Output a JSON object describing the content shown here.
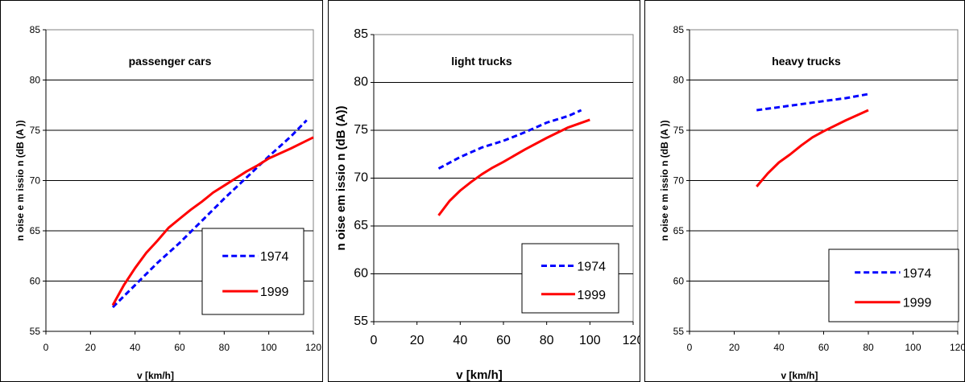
{
  "chart_data": [
    {
      "type": "line",
      "title": "passenger cars",
      "xlabel": "v [km/h]",
      "ylabel": "n oise  e m issio n  (dB (A ))",
      "xlim": [
        0,
        120
      ],
      "ylim": [
        55,
        85
      ],
      "x_ticks": [
        "0",
        "20",
        "40",
        "60",
        "80",
        "100",
        "120"
      ],
      "y_ticks": [
        "55",
        "60",
        "65",
        "70",
        "75",
        "80",
        "85"
      ],
      "grid": "horizontal",
      "legend_position": "bottom-right",
      "series": [
        {
          "name": "1974",
          "color": "#0000ff",
          "style": "dashed",
          "x": [
            30,
            40,
            50,
            60,
            70,
            80,
            90,
            100,
            110,
            117
          ],
          "y": [
            57.4,
            59.6,
            61.8,
            63.8,
            66.0,
            68.2,
            70.3,
            72.4,
            74.4,
            76.0
          ]
        },
        {
          "name": "1999",
          "color": "#ff0000",
          "style": "solid",
          "x": [
            30,
            35,
            40,
            45,
            50,
            55,
            60,
            65,
            70,
            75,
            80,
            85,
            90,
            95,
            100,
            110,
            120
          ],
          "y": [
            57.6,
            59.6,
            61.3,
            62.8,
            64.0,
            65.3,
            66.2,
            67.1,
            67.9,
            68.8,
            69.5,
            70.2,
            70.9,
            71.5,
            72.2,
            73.2,
            74.3
          ]
        }
      ]
    },
    {
      "type": "line",
      "title": "light trucks",
      "xlabel": "v [km/h]",
      "ylabel": "n oise  em issio n  (dB (A))",
      "xlim": [
        0,
        120
      ],
      "ylim": [
        55,
        85
      ],
      "x_ticks": [
        "0",
        "20",
        "40",
        "60",
        "80",
        "100",
        "120"
      ],
      "y_ticks": [
        "55",
        "60",
        "65",
        "70",
        "75",
        "80",
        "85"
      ],
      "grid": "horizontal",
      "legend_position": "bottom-right",
      "series": [
        {
          "name": "1974",
          "color": "#0000ff",
          "style": "dashed",
          "x": [
            30,
            40,
            50,
            60,
            70,
            80,
            90,
            96
          ],
          "y": [
            71.0,
            72.2,
            73.2,
            73.9,
            74.8,
            75.8,
            76.5,
            77.1
          ]
        },
        {
          "name": "1999",
          "color": "#ff0000",
          "style": "solid",
          "x": [
            30,
            35,
            40,
            45,
            50,
            55,
            60,
            70,
            80,
            90,
            100
          ],
          "y": [
            66.1,
            67.6,
            68.7,
            69.6,
            70.4,
            71.1,
            71.7,
            73.0,
            74.2,
            75.3,
            76.1
          ]
        }
      ]
    },
    {
      "type": "line",
      "title": "heavy trucks",
      "xlabel": "v [km/h]",
      "ylabel": "n oise  e m issio n  (dB (A ))",
      "xlim": [
        0,
        120
      ],
      "ylim": [
        55,
        85
      ],
      "x_ticks": [
        "0",
        "20",
        "40",
        "60",
        "80",
        "100",
        "120"
      ],
      "y_ticks": [
        "55",
        "60",
        "65",
        "70",
        "75",
        "80",
        "85"
      ],
      "grid": "horizontal",
      "legend_position": "bottom-right",
      "series": [
        {
          "name": "1974",
          "color": "#0000ff",
          "style": "dashed",
          "x": [
            30,
            40,
            50,
            60,
            70,
            80
          ],
          "y": [
            77.0,
            77.3,
            77.6,
            77.9,
            78.2,
            78.6
          ]
        },
        {
          "name": "1999",
          "color": "#ff0000",
          "style": "solid",
          "x": [
            30,
            35,
            40,
            45,
            50,
            55,
            60,
            70,
            80
          ],
          "y": [
            69.4,
            70.7,
            71.8,
            72.6,
            73.5,
            74.3,
            74.9,
            76.0,
            77.0
          ]
        }
      ]
    }
  ]
}
